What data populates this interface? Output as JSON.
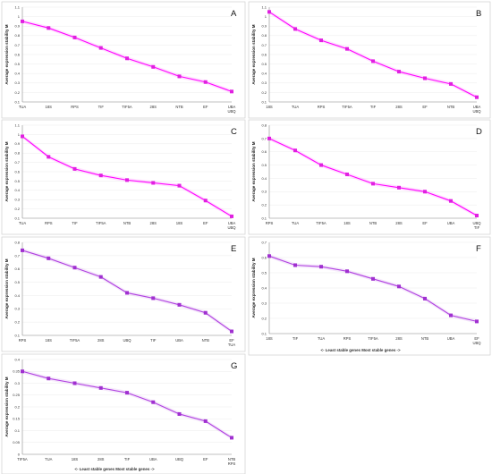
{
  "chart_data": [
    {
      "panel": "A",
      "type": "line",
      "ylabel": "Average expression stability M",
      "ylim": [
        0.1,
        1.1
      ],
      "yticks": [
        "0.1",
        "0.2",
        "0.3",
        "0.4",
        "0.5",
        "0.6",
        "0.7",
        "0.8",
        "0.9",
        "1",
        "1.1"
      ],
      "categories": [
        "TUA",
        "18S",
        "RPS",
        "TIF",
        "TIF5A",
        "28S",
        "NTB",
        "EF",
        "UBA\nUBQ"
      ],
      "values": [
        0.95,
        0.88,
        0.78,
        0.67,
        0.56,
        0.47,
        0.37,
        0.31,
        0.21
      ],
      "grid": true,
      "line_color": "#ff00ff",
      "marker_color": "#e020e0"
    },
    {
      "panel": "B",
      "type": "line",
      "ylabel": "Average expression stability M",
      "ylim": [
        0.1,
        1.1
      ],
      "yticks": [
        "0.1",
        "0.2",
        "0.3",
        "0.4",
        "0.5",
        "0.6",
        "0.7",
        "0.8",
        "0.9",
        "1",
        "1.1"
      ],
      "categories": [
        "18S",
        "TUA",
        "RPS",
        "TIF5A",
        "TIF",
        "28S",
        "EF",
        "NTB",
        "UBA\nUBQ"
      ],
      "values": [
        1.05,
        0.87,
        0.75,
        0.66,
        0.53,
        0.42,
        0.35,
        0.29,
        0.15
      ],
      "grid": true,
      "line_color": "#ff00ff",
      "marker_color": "#e020e0"
    },
    {
      "panel": "C",
      "type": "line",
      "ylabel": "Average expression stability M",
      "ylim": [
        0.1,
        1.1
      ],
      "yticks": [
        "0.1",
        "0.2",
        "0.3",
        "0.4",
        "0.5",
        "0.6",
        "0.7",
        "0.8",
        "0.9",
        "1",
        "1.1"
      ],
      "categories": [
        "TUA",
        "RPS",
        "TIF",
        "TIF5A",
        "NTB",
        "28S",
        "18S",
        "EF",
        "UBA\nUBQ"
      ],
      "values": [
        0.98,
        0.76,
        0.63,
        0.56,
        0.51,
        0.48,
        0.45,
        0.29,
        0.12
      ],
      "grid": true,
      "line_color": "#ff00ff",
      "marker_color": "#e020e0"
    },
    {
      "panel": "D",
      "type": "line",
      "ylabel": "Average expression stability M",
      "ylim": [
        0.1,
        0.8
      ],
      "yticks": [
        "0.1",
        "0.2",
        "0.3",
        "0.4",
        "0.5",
        "0.6",
        "0.7",
        "0.8"
      ],
      "categories": [
        "RPS",
        "TUA",
        "TIF5A",
        "18S",
        "NTB",
        "28S",
        "EF",
        "UBA",
        "UBQ\nTIF"
      ],
      "values": [
        0.7,
        0.61,
        0.5,
        0.43,
        0.36,
        0.33,
        0.3,
        0.23,
        0.12
      ],
      "grid": true,
      "line_color": "#ff00ff",
      "marker_color": "#e020e0"
    },
    {
      "panel": "E",
      "type": "line",
      "ylabel": "Average expression stability M",
      "ylim": [
        0.1,
        0.8
      ],
      "yticks": [
        "0.1",
        "0.2",
        "0.3",
        "0.4",
        "0.5",
        "0.6",
        "0.7",
        "0.8"
      ],
      "categories": [
        "RPS",
        "18S",
        "TIF5A",
        "28S",
        "UBQ",
        "TIF",
        "UBA",
        "NTB",
        "EF\nTUA"
      ],
      "values": [
        0.74,
        0.68,
        0.61,
        0.54,
        0.42,
        0.38,
        0.33,
        0.27,
        0.13
      ],
      "grid": true,
      "line_color": "#b040e0",
      "marker_color": "#a030d0"
    },
    {
      "panel": "F",
      "type": "line",
      "ylabel": "Average expression stability M",
      "ylim": [
        0.1,
        0.7
      ],
      "yticks": [
        "0.1",
        "0.2",
        "0.3",
        "0.4",
        "0.5",
        "0.6",
        "0.7"
      ],
      "categories": [
        "18S",
        "TIF",
        "TUA",
        "RPS",
        "TIF5A",
        "28S",
        "NTB",
        "UBA",
        "EF\nUBQ"
      ],
      "values": [
        0.61,
        0.55,
        0.54,
        0.51,
        0.46,
        0.41,
        0.33,
        0.22,
        0.18
      ],
      "grid": true,
      "line_color": "#b040e0",
      "marker_color": "#a030d0",
      "annotation": "<- Least stable genes      Most stable genes ->"
    },
    {
      "panel": "G",
      "type": "line",
      "ylabel": "Average expression stability M",
      "ylim": [
        0,
        0.4
      ],
      "yticks": [
        "0",
        "0.05",
        "0.1",
        "0.15",
        "0.2",
        "0.25",
        "0.3",
        "0.35",
        "0.4"
      ],
      "categories": [
        "TIF5A",
        "TUA",
        "18S",
        "28S",
        "TIF",
        "UBA",
        "UBQ",
        "EF",
        "NTB\nRPS"
      ],
      "values": [
        0.35,
        0.32,
        0.3,
        0.28,
        0.26,
        0.22,
        0.17,
        0.14,
        0.07
      ],
      "grid": true,
      "line_color": "#b040e0",
      "marker_color": "#a030d0",
      "annotation": "<- Least stable genes      Most stable genes ->"
    }
  ]
}
